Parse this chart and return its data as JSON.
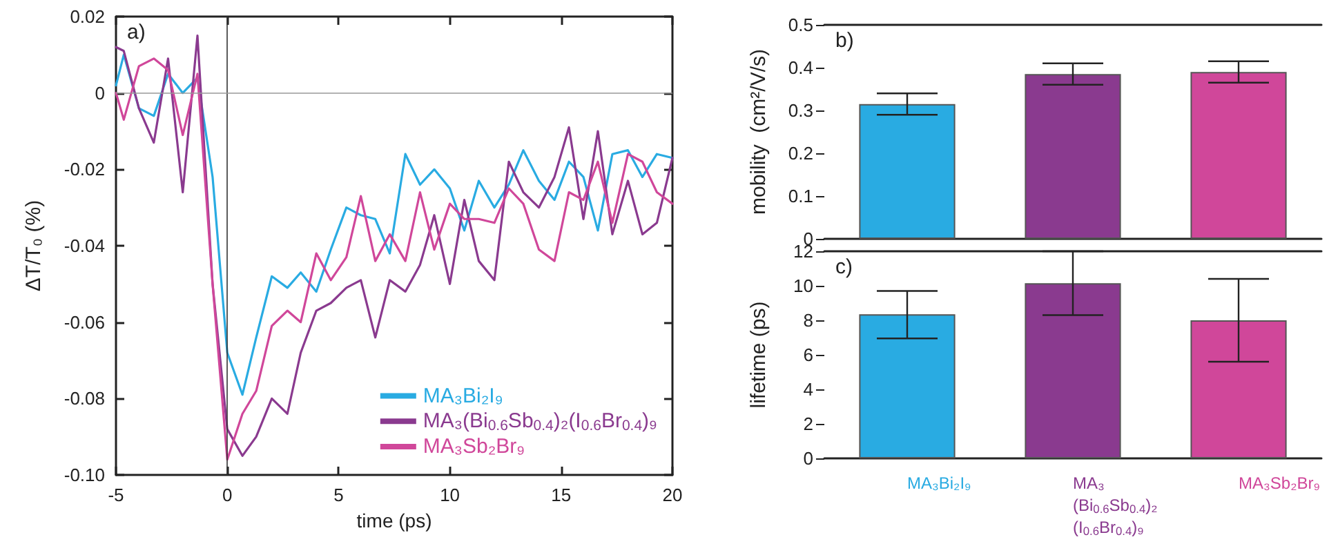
{
  "chart_data": [
    {
      "type": "line",
      "xlabel": "time (ps)",
      "ylabel": "ΔT/T₀ (%)",
      "annotations": [
        "a)"
      ],
      "legend": "bottom right",
      "grid": false,
      "marker": "none",
      "line_style": "solid",
      "xlim": [
        -5,
        20
      ],
      "xticks": [
        -5,
        0,
        5,
        10,
        15,
        20
      ],
      "ylim": [
        -0.1,
        0.02
      ],
      "yticks": [
        {
          "value": -0.1,
          "label": "-0.10"
        },
        {
          "value": -0.08,
          "label": "-0.08"
        },
        {
          "value": -0.06,
          "label": "-0.06"
        },
        {
          "value": -0.04,
          "label": "-0.04"
        },
        {
          "value": -0.02,
          "label": "-0.02"
        },
        0,
        0.02
      ],
      "x": [
        -5,
        -4.65,
        -3.97,
        -3.3,
        -2.66,
        -2,
        -1.34,
        -0.66,
        0,
        0.68,
        1.3,
        2,
        2.7,
        3.3,
        4,
        4.65,
        5.35,
        6,
        6.65,
        7.3,
        8,
        8.66,
        9.3,
        10,
        10.65,
        11.3,
        12,
        12.65,
        13.3,
        14,
        14.7,
        15.35,
        16,
        16.65,
        17.3,
        18,
        18.65,
        19.3,
        20
      ],
      "ref_lines": [
        {
          "axis": "x",
          "value": 0,
          "color": "#333333"
        },
        {
          "axis": "y",
          "value": 0,
          "color": "#999999"
        }
      ],
      "series": [
        {
          "name": "MA₃Bi₂I₉",
          "color": "#29abe2",
          "values": [
            0.002,
            0.01,
            -0.004,
            -0.006,
            0.005,
            0.0,
            0.004,
            -0.022,
            -0.068,
            -0.079,
            -0.064,
            -0.048,
            -0.051,
            -0.047,
            -0.052,
            -0.041,
            -0.03,
            -0.032,
            -0.033,
            -0.042,
            -0.016,
            -0.024,
            -0.02,
            -0.025,
            -0.036,
            -0.023,
            -0.03,
            -0.024,
            -0.015,
            -0.023,
            -0.028,
            -0.018,
            -0.022,
            -0.036,
            -0.016,
            -0.015,
            -0.022,
            -0.016,
            -0.017
          ]
        },
        {
          "name": "MA₃(Bi$_{0.6}$Sb$_{0.4}$)₂(I$_{0.6}$Br$_{0.4}$)₉",
          "color": "#8a3a8f",
          "values": [
            0.012,
            0.011,
            -0.004,
            -0.013,
            0.009,
            -0.026,
            0.015,
            -0.05,
            -0.088,
            -0.095,
            -0.09,
            -0.08,
            -0.084,
            -0.068,
            -0.057,
            -0.055,
            -0.051,
            -0.049,
            -0.064,
            -0.049,
            -0.052,
            -0.045,
            -0.032,
            -0.05,
            -0.028,
            -0.044,
            -0.049,
            -0.018,
            -0.026,
            -0.03,
            -0.022,
            -0.009,
            -0.033,
            -0.01,
            -0.037,
            -0.023,
            -0.037,
            -0.034,
            -0.017
          ]
        },
        {
          "name": "MA₃Sb₂Br₉",
          "color": "#d0479a",
          "values": [
            0.0,
            -0.007,
            0.007,
            0.009,
            0.006,
            -0.011,
            0.005,
            -0.05,
            -0.096,
            -0.084,
            -0.078,
            -0.061,
            -0.057,
            -0.06,
            -0.042,
            -0.049,
            -0.043,
            -0.027,
            -0.044,
            -0.037,
            -0.044,
            -0.026,
            -0.041,
            -0.029,
            -0.033,
            -0.033,
            -0.034,
            -0.025,
            -0.029,
            -0.041,
            -0.044,
            -0.026,
            -0.028,
            -0.018,
            -0.034,
            -0.016,
            -0.018,
            -0.026,
            -0.029
          ]
        }
      ]
    },
    {
      "type": "bar",
      "ylabel": "mobility  (cm²/V/s)",
      "annotations": [
        "b)"
      ],
      "grid": false,
      "tick_labels": "y",
      "categories": [
        null,
        null,
        null
      ],
      "values": [
        0.315,
        0.385,
        0.39
      ],
      "colors": [
        "#29abe2",
        "#8a3a8f",
        "#d0479a"
      ],
      "errors": [
        [
          0.29,
          0.34
        ],
        [
          0.36,
          0.41
        ],
        [
          0.365,
          0.415
        ]
      ],
      "ylim": [
        0,
        0.5
      ],
      "yticks": [
        0,
        0.1,
        0.2,
        0.3,
        0.4,
        0.5
      ]
    },
    {
      "type": "bar",
      "ylabel": "lifetime (ps)",
      "annotations": [
        "c)"
      ],
      "grid": false,
      "categories": [
        "MA₃Bi₂I₉",
        "MA₃(Bi$_{0.6}$Sb$_{0.4}$)₂(I$_{0.6}$Br$_{0.4}$)₉",
        "MA₃Sb₂Br₉"
      ],
      "values": [
        8.35,
        10.15,
        8.0
      ],
      "colors": [
        "#29abe2",
        "#8a3a8f",
        "#d0479a"
      ],
      "errors": [
        [
          6.95,
          9.7
        ],
        [
          8.3,
          12
        ],
        [
          5.6,
          10.4
        ]
      ],
      "ylim": [
        0,
        12
      ],
      "yticks": [
        0,
        2,
        4,
        6,
        8,
        10,
        12
      ]
    }
  ]
}
